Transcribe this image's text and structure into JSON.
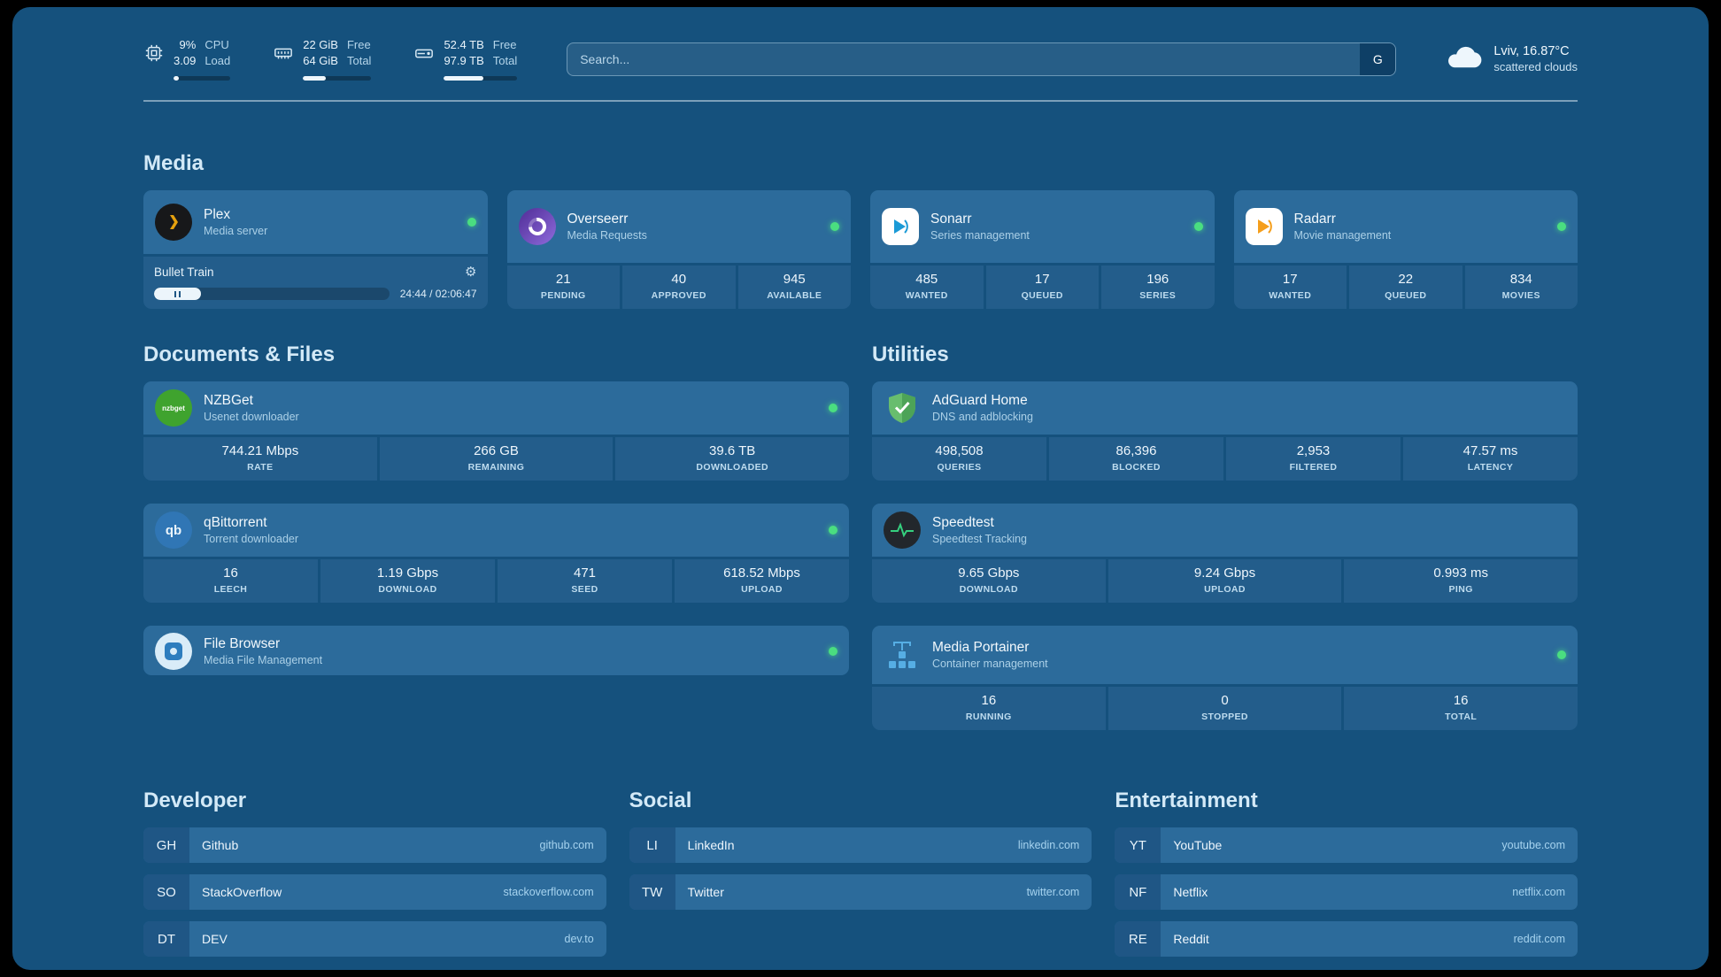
{
  "theme": {
    "background": "#15517d",
    "card": "#2c6b9b",
    "stat_box": "#235d8b",
    "status_online": "#4ade80"
  },
  "topbar": {
    "cpu": {
      "value_top": "9%",
      "value_bottom": "3.09",
      "label_top": "CPU",
      "label_bottom": "Load",
      "progress": 9
    },
    "memory": {
      "value_top": "22 GiB",
      "value_bottom": "64 GiB",
      "label_top": "Free",
      "label_bottom": "Total",
      "progress": 34
    },
    "disk": {
      "value_top": "52.4 TB",
      "value_bottom": "97.9 TB",
      "label_top": "Free",
      "label_bottom": "Total",
      "progress": 54
    },
    "search": {
      "placeholder": "Search...",
      "button_label": "G"
    },
    "weather": {
      "location": "Lviv, 16.87°C",
      "condition": "scattered clouds"
    }
  },
  "sections": {
    "media": {
      "title": "Media"
    },
    "documents": {
      "title": "Documents & Files"
    },
    "utilities": {
      "title": "Utilities"
    }
  },
  "services": {
    "plex": {
      "name": "Plex",
      "subtitle": "Media server",
      "now_playing": "Bullet Train",
      "time": "24:44 / 02:06:47",
      "progress": 20
    },
    "overseerr": {
      "name": "Overseerr",
      "subtitle": "Media Requests",
      "stats": [
        {
          "value": "21",
          "label": "PENDING"
        },
        {
          "value": "40",
          "label": "APPROVED"
        },
        {
          "value": "945",
          "label": "AVAILABLE"
        }
      ]
    },
    "sonarr": {
      "name": "Sonarr",
      "subtitle": "Series management",
      "stats": [
        {
          "value": "485",
          "label": "WANTED"
        },
        {
          "value": "17",
          "label": "QUEUED"
        },
        {
          "value": "196",
          "label": "SERIES"
        }
      ]
    },
    "radarr": {
      "name": "Radarr",
      "subtitle": "Movie management",
      "stats": [
        {
          "value": "17",
          "label": "WANTED"
        },
        {
          "value": "22",
          "label": "QUEUED"
        },
        {
          "value": "834",
          "label": "MOVIES"
        }
      ]
    },
    "nzbget": {
      "name": "NZBGet",
      "subtitle": "Usenet downloader",
      "icon_text": "nzbget",
      "stats": [
        {
          "value": "744.21 Mbps",
          "label": "RATE"
        },
        {
          "value": "266 GB",
          "label": "REMAINING"
        },
        {
          "value": "39.6 TB",
          "label": "DOWNLOADED"
        }
      ]
    },
    "qbittorrent": {
      "name": "qBittorrent",
      "subtitle": "Torrent downloader",
      "icon_text": "qb",
      "stats": [
        {
          "value": "16",
          "label": "LEECH"
        },
        {
          "value": "1.19 Gbps",
          "label": "DOWNLOAD"
        },
        {
          "value": "471",
          "label": "SEED"
        },
        {
          "value": "618.52 Mbps",
          "label": "UPLOAD"
        }
      ]
    },
    "filebrowser": {
      "name": "File Browser",
      "subtitle": "Media File Management"
    },
    "adguard": {
      "name": "AdGuard Home",
      "subtitle": "DNS and adblocking",
      "stats": [
        {
          "value": "498,508",
          "label": "QUERIES"
        },
        {
          "value": "86,396",
          "label": "BLOCKED"
        },
        {
          "value": "2,953",
          "label": "FILTERED"
        },
        {
          "value": "47.57 ms",
          "label": "LATENCY"
        }
      ]
    },
    "speedtest": {
      "name": "Speedtest",
      "subtitle": "Speedtest Tracking",
      "stats": [
        {
          "value": "9.65 Gbps",
          "label": "DOWNLOAD"
        },
        {
          "value": "9.24 Gbps",
          "label": "UPLOAD"
        },
        {
          "value": "0.993 ms",
          "label": "PING"
        }
      ]
    },
    "portainer": {
      "name": "Media Portainer",
      "subtitle": "Container management",
      "stats": [
        {
          "value": "16",
          "label": "RUNNING"
        },
        {
          "value": "0",
          "label": "STOPPED"
        },
        {
          "value": "16",
          "label": "TOTAL"
        }
      ]
    }
  },
  "bookmarks": [
    {
      "title": "Developer",
      "items": [
        {
          "abbr": "GH",
          "name": "Github",
          "domain": "github.com"
        },
        {
          "abbr": "SO",
          "name": "StackOverflow",
          "domain": "stackoverflow.com"
        },
        {
          "abbr": "DT",
          "name": "DEV",
          "domain": "dev.to"
        }
      ]
    },
    {
      "title": "Social",
      "items": [
        {
          "abbr": "LI",
          "name": "LinkedIn",
          "domain": "linkedin.com"
        },
        {
          "abbr": "TW",
          "name": "Twitter",
          "domain": "twitter.com"
        }
      ]
    },
    {
      "title": "Entertainment",
      "items": [
        {
          "abbr": "YT",
          "name": "YouTube",
          "domain": "youtube.com"
        },
        {
          "abbr": "NF",
          "name": "Netflix",
          "domain": "netflix.com"
        },
        {
          "abbr": "RE",
          "name": "Reddit",
          "domain": "reddit.com"
        }
      ]
    }
  ]
}
